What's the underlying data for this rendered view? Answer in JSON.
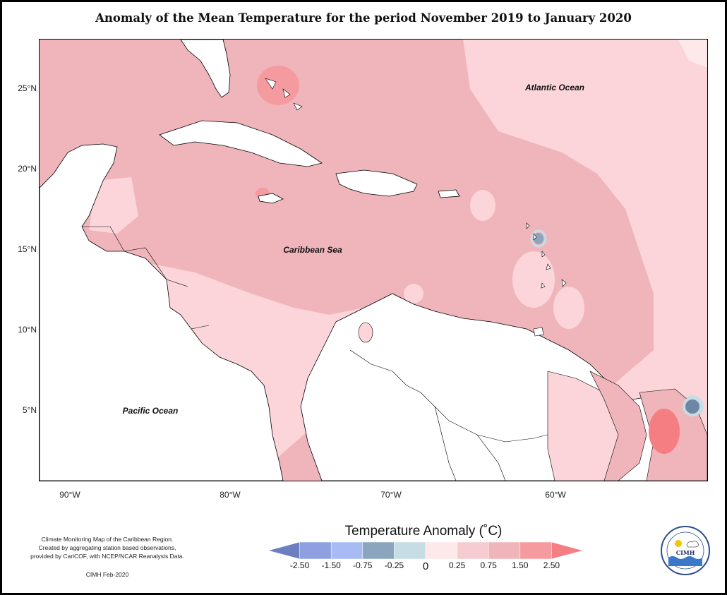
{
  "title": "Anomaly of the Mean Temperature for the period November 2019 to January 2020",
  "map": {
    "lat_labels": [
      "25°N",
      "20°N",
      "15°N",
      "10°N",
      "5°N"
    ],
    "lon_labels": [
      "90°W",
      "80°W",
      "70°W",
      "60°W"
    ],
    "labels": {
      "atlantic": "Atlantic Ocean",
      "caribbean": "Caribbean Sea",
      "pacific": "Pacific Ocean"
    },
    "extent": {
      "lon_min": -92,
      "lon_max": -50.2,
      "lat_min": 0.7,
      "lat_max": 27.6
    }
  },
  "credits": {
    "line1": "Climate Monitoring Map of the Caribbean Region.",
    "line2": "Created by aggregating station based observations,",
    "line3": "provided by CariCOF, with NCEP/NCAR Reanalysis Data.",
    "stamp": "CIMH Feb-2020"
  },
  "legend": {
    "title": "Temperature Anomaly (˚C)",
    "ticks": [
      "-2.50",
      "-1.50",
      "-0.75",
      "-0.25",
      "0",
      "0.25",
      "0.75",
      "1.50",
      "2.50"
    ],
    "colors": [
      "#6e7fbf",
      "#8ea0df",
      "#a9bbf5",
      "#8aa5bd",
      "#c7dde6",
      "#fde8ea",
      "#f6ccd1",
      "#efb5bb",
      "#f59ba0",
      "#f57e82"
    ]
  },
  "logo": {
    "text": "CIMH"
  }
}
